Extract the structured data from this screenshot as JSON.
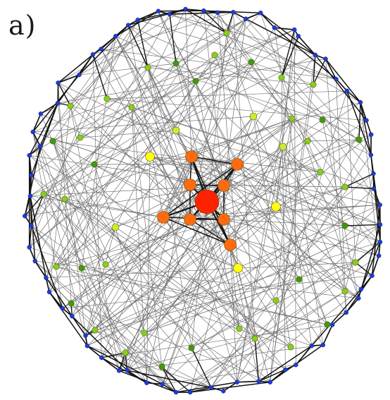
{
  "figure": {
    "panel_label": "a)"
  },
  "network": {
    "layout": "concentric-radial",
    "node_colors": {
      "hub": "#ff2200",
      "inner": "#ff6a10",
      "yellow": "#ffff10",
      "yellow_green": "#c8ee30",
      "green": "#7ed320",
      "dark_green": "#3a9c10",
      "blue": "#1b3ddd"
    },
    "edge_colors": {
      "thin": "#6e6e6e",
      "thick": "#141414"
    },
    "legend": "none"
  }
}
